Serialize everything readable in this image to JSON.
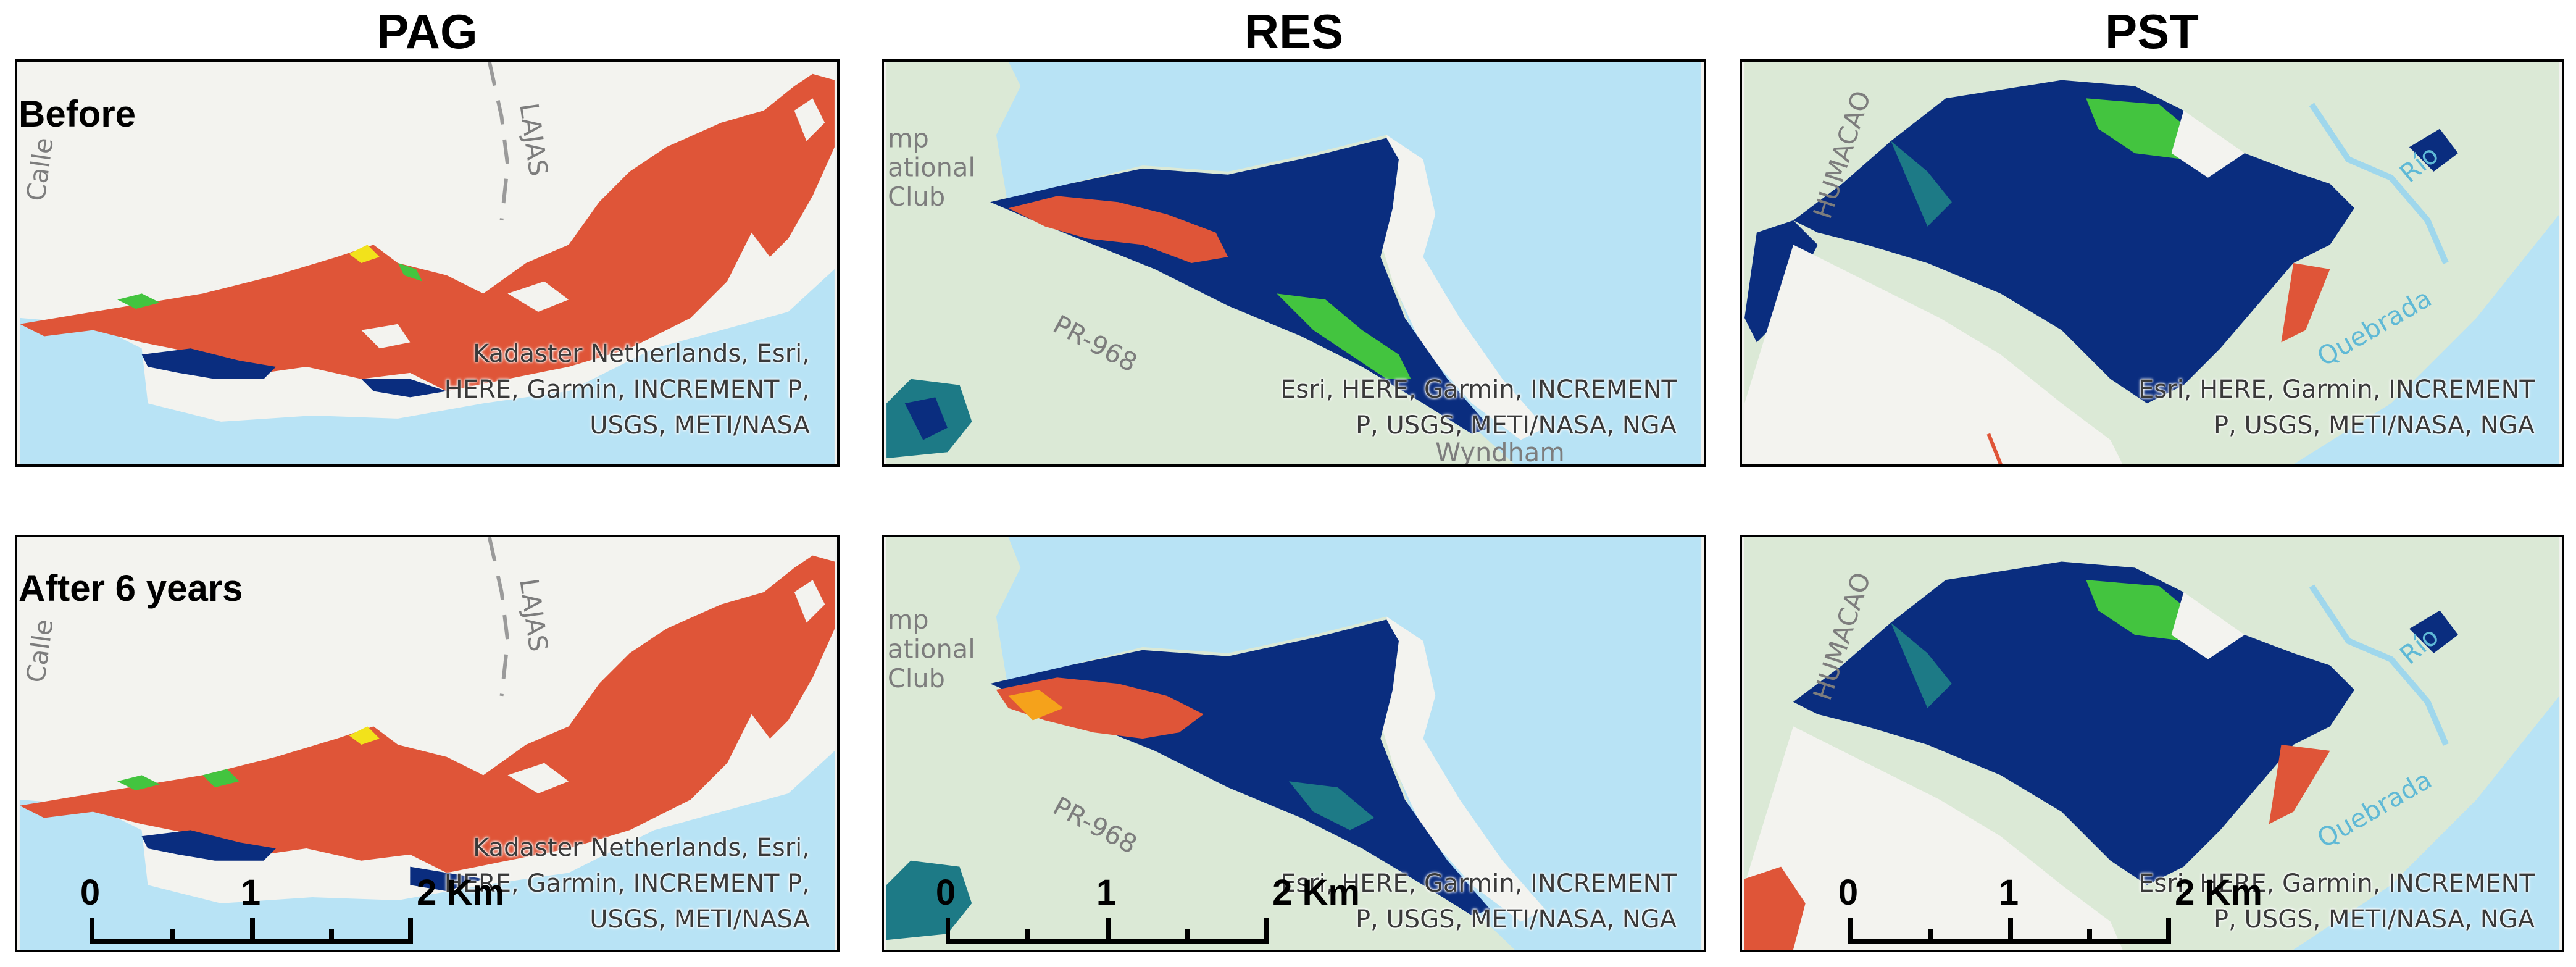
{
  "columns": {
    "pag": {
      "title": "PAG"
    },
    "res": {
      "title": "RES"
    },
    "pst": {
      "title": "PST"
    }
  },
  "rows": {
    "before": {
      "label": "Before"
    },
    "after": {
      "label": "After 6 years"
    }
  },
  "attribution": {
    "pag": "Kadaster Netherlands, Esri,\nHERE, Garmin, INCREMENT P,\nUSGS, METI/NASA",
    "res": "Esri, HERE, Garmin, INCREMENT\nP, USGS, METI/NASA, NGA",
    "pst": "Esri, HERE, Garmin, INCREMENT\nP, USGS, METI/NASA, NGA"
  },
  "map_labels": {
    "pag_street_left": "Calle",
    "pag_street_top": "LAJAS",
    "res_club": "mp\national\nClub",
    "res_road": "PR-968",
    "res_place": "Wyndham",
    "pst_place": "HUMACAO",
    "pst_river_1": "Río",
    "pst_river_2": "Quebrada"
  },
  "scale_bar": {
    "ticks": [
      "0",
      "1",
      "2 Km"
    ]
  },
  "colors": {
    "water": "#b8e3f5",
    "land": "#f3f3ef",
    "vegetation_land": "#dbe9d6",
    "class_dark_blue": "#0a2d7f",
    "class_red_orange": "#df5538",
    "class_green": "#43c43f",
    "class_yellow": "#f2e21b",
    "class_teal": "#1d7a86"
  }
}
